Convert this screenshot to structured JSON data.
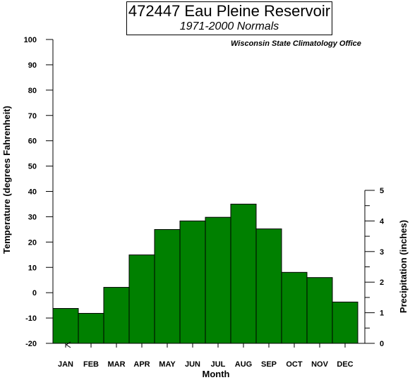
{
  "header": {
    "title": "472447 Eau Pleine Reservoir",
    "subtitle": "1971-2000 Normals",
    "source": "Wisconsin State Climatology Office"
  },
  "chart_data": {
    "type": "bar",
    "xlabel": "Month",
    "ylabel_left": "Temperature (degrees Fahrenheit)",
    "ylabel_right": "Precipitation (inches)",
    "categories": [
      "JAN",
      "FEB",
      "MAR",
      "APR",
      "MAY",
      "JUN",
      "JUL",
      "AUG",
      "SEP",
      "OCT",
      "NOV",
      "DEC"
    ],
    "series": [
      {
        "values": [
          1.14,
          0.98,
          1.83,
          2.89,
          3.72,
          4.0,
          4.12,
          4.55,
          3.74,
          2.32,
          2.15,
          1.35
        ]
      }
    ],
    "ylim_left": [
      -20,
      100
    ],
    "yticks_left": [
      "-20",
      "-10",
      "0",
      "10",
      "20",
      "30",
      "40",
      "50",
      "60",
      "70",
      "80",
      "90",
      "100"
    ],
    "ylim_right": [
      0,
      5
    ],
    "yticks_right": [
      "0",
      "1",
      "2",
      "3",
      "4",
      "5"
    ],
    "bar_color": "#008000",
    "grid": false
  }
}
